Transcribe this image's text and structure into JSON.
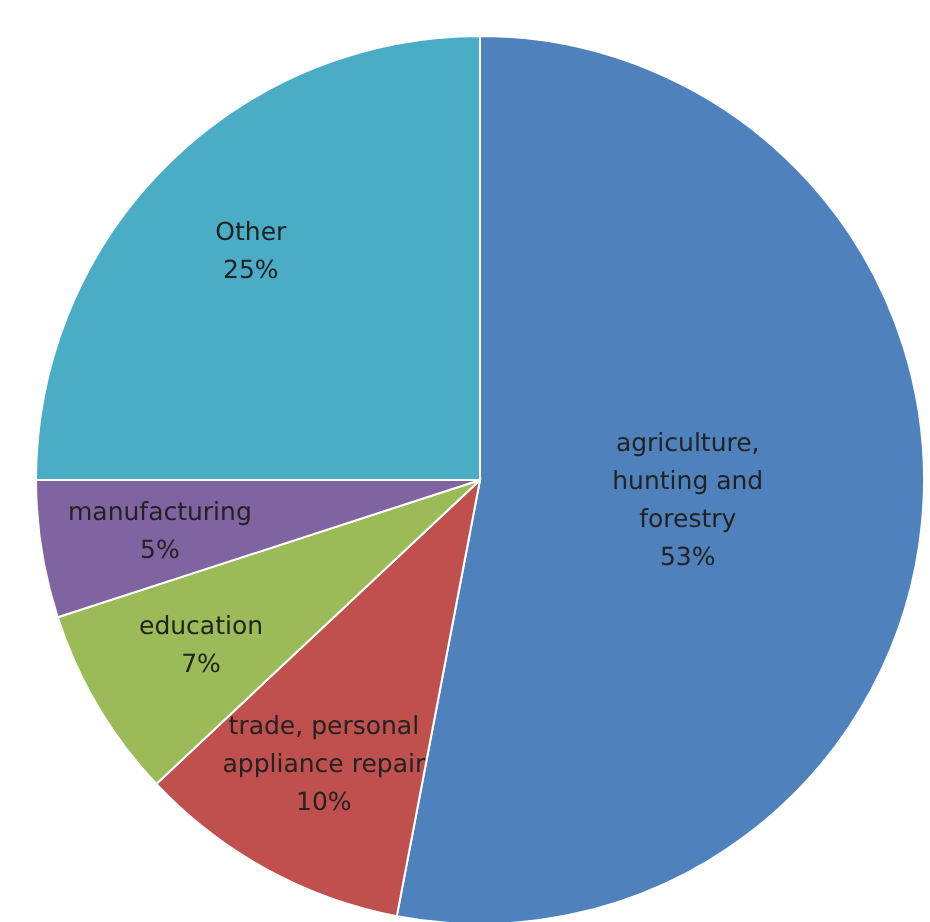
{
  "chart_data": {
    "type": "pie",
    "categories": [
      "agriculture, hunting and forestry",
      "trade, personal appliance repair",
      "education",
      "manufacturing",
      "Other"
    ],
    "values": [
      53,
      10,
      7,
      5,
      25
    ],
    "colors": [
      "#4f81bd",
      "#c0504d",
      "#9bbb59",
      "#8064a2",
      "#4bacc6"
    ],
    "value_labels": [
      "53%",
      "10%",
      "7%",
      "5%",
      "25%"
    ]
  }
}
